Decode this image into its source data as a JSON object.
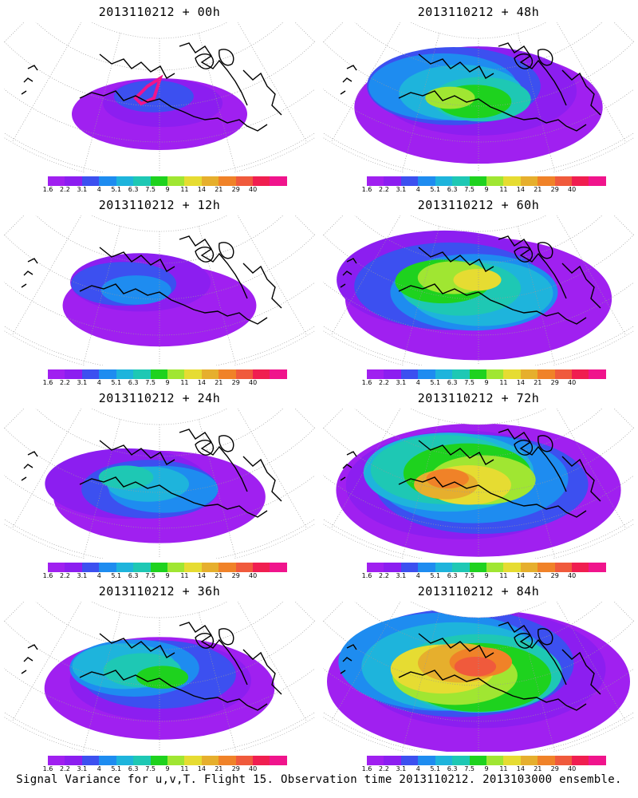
{
  "panels": [
    {
      "title": "2013110212 + 00h",
      "lead_hours": 0
    },
    {
      "title": "2013110212 + 48h",
      "lead_hours": 48
    },
    {
      "title": "2013110212 + 12h",
      "lead_hours": 12
    },
    {
      "title": "2013110212 + 60h",
      "lead_hours": 60
    },
    {
      "title": "2013110212 + 24h",
      "lead_hours": 24
    },
    {
      "title": "2013110212 + 72h",
      "lead_hours": 72
    },
    {
      "title": "2013110212 + 36h",
      "lead_hours": 36
    },
    {
      "title": "2013110212 + 84h",
      "lead_hours": 84
    }
  ],
  "colorbar": {
    "labels": [
      "1.6",
      "2.2",
      "3.1",
      "4",
      "5.1",
      "6.3",
      "7.5",
      "9",
      "11",
      "14",
      "21",
      "29",
      "40"
    ],
    "colors": [
      "#a020f0",
      "#8c1ef0",
      "#3c50f0",
      "#1e8cf0",
      "#1eb4dc",
      "#1ec8b4",
      "#1ed21e",
      "#a0e632",
      "#e6dc32",
      "#e6af2d",
      "#f08228",
      "#f05a3c",
      "#f01e50",
      "#f0148c"
    ]
  },
  "caption": "Signal Variance for u,v,T. Flight 15. Observation time 2013110212. 2013103000 ensemble."
}
